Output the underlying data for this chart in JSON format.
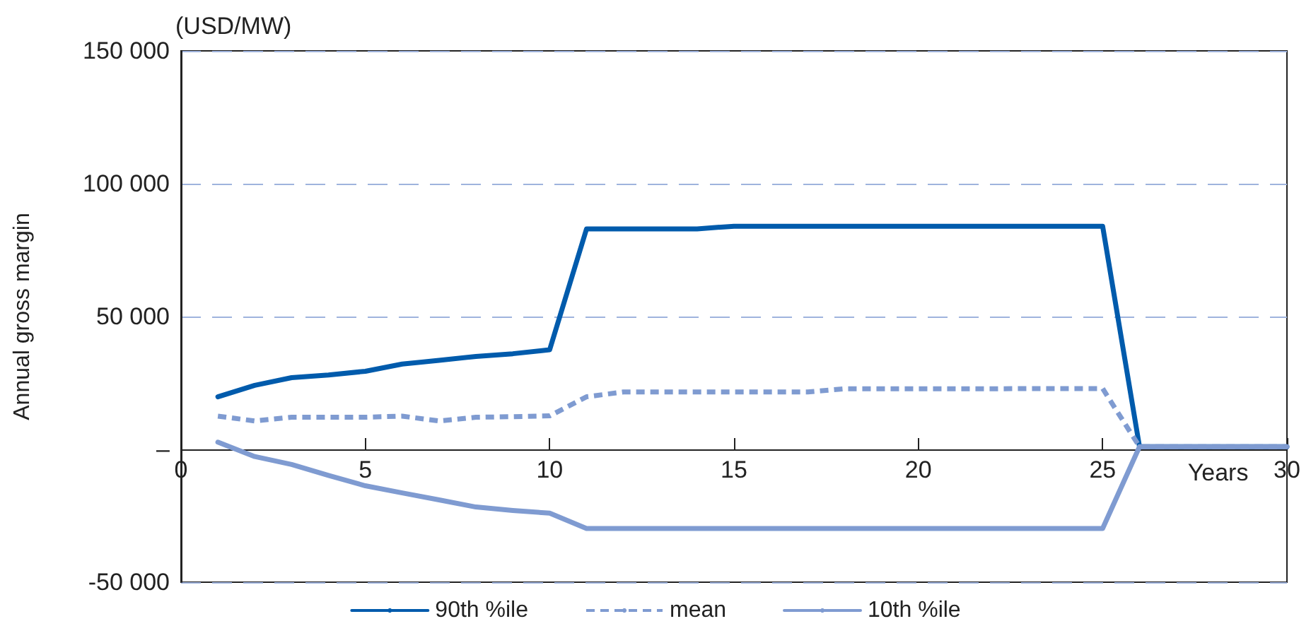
{
  "chart_data": {
    "type": "line",
    "ylabel": "Annual gross margin",
    "xlabel": "Years",
    "annotations": [
      "(USD/MW)"
    ],
    "x": [
      1,
      2,
      3,
      4,
      5,
      6,
      7,
      8,
      9,
      10,
      11,
      12,
      13,
      14,
      15,
      16,
      17,
      18,
      19,
      20,
      21,
      22,
      23,
      24,
      25,
      26,
      27,
      28,
      29,
      30
    ],
    "series": [
      {
        "name": "90th %ile",
        "color": "#005bac",
        "line_style": "solid",
        "values": [
          19800,
          24100,
          27000,
          28000,
          29400,
          32100,
          33500,
          35000,
          36000,
          37500,
          83000,
          83000,
          83000,
          83000,
          84000,
          84000,
          84000,
          84000,
          84000,
          84000,
          84000,
          84000,
          84000,
          84000,
          84000,
          1000,
          1000,
          1000,
          1000,
          1000
        ]
      },
      {
        "name": "mean",
        "color": "#7f9bd1",
        "line_style": "dashed",
        "values": [
          12500,
          10700,
          12100,
          12100,
          12100,
          12500,
          10700,
          12100,
          12300,
          12600,
          19800,
          21600,
          21600,
          21600,
          21600,
          21600,
          21600,
          22800,
          22800,
          22800,
          22800,
          22800,
          22900,
          22900,
          22900,
          1000,
          1000,
          1000,
          1000,
          1000
        ]
      },
      {
        "name": "10th %ile",
        "color": "#7f9bd1",
        "line_style": "solid",
        "values": [
          2700,
          -2700,
          -5700,
          -9800,
          -13700,
          -16400,
          -19000,
          -21700,
          -23000,
          -24000,
          -29800,
          -29800,
          -29800,
          -29800,
          -29800,
          -29800,
          -29800,
          -29800,
          -29800,
          -29800,
          -29800,
          -29800,
          -29800,
          -29800,
          -29800,
          1000,
          1000,
          1000,
          1000,
          1000
        ]
      }
    ],
    "xlim": [
      0,
      30
    ],
    "xticks": [
      0,
      5,
      10,
      15,
      20,
      25,
      30
    ],
    "ylim": [
      -50000,
      150000
    ],
    "yticks": [
      {
        "value": -50000,
        "label": "-50 000"
      },
      {
        "value": 0,
        "label": "–"
      },
      {
        "value": 50000,
        "label": "50 000"
      },
      {
        "value": 100000,
        "label": "100 000"
      },
      {
        "value": 150000,
        "label": "150 000"
      }
    ],
    "grid": "y",
    "legend": "bottom",
    "marker": "none"
  }
}
